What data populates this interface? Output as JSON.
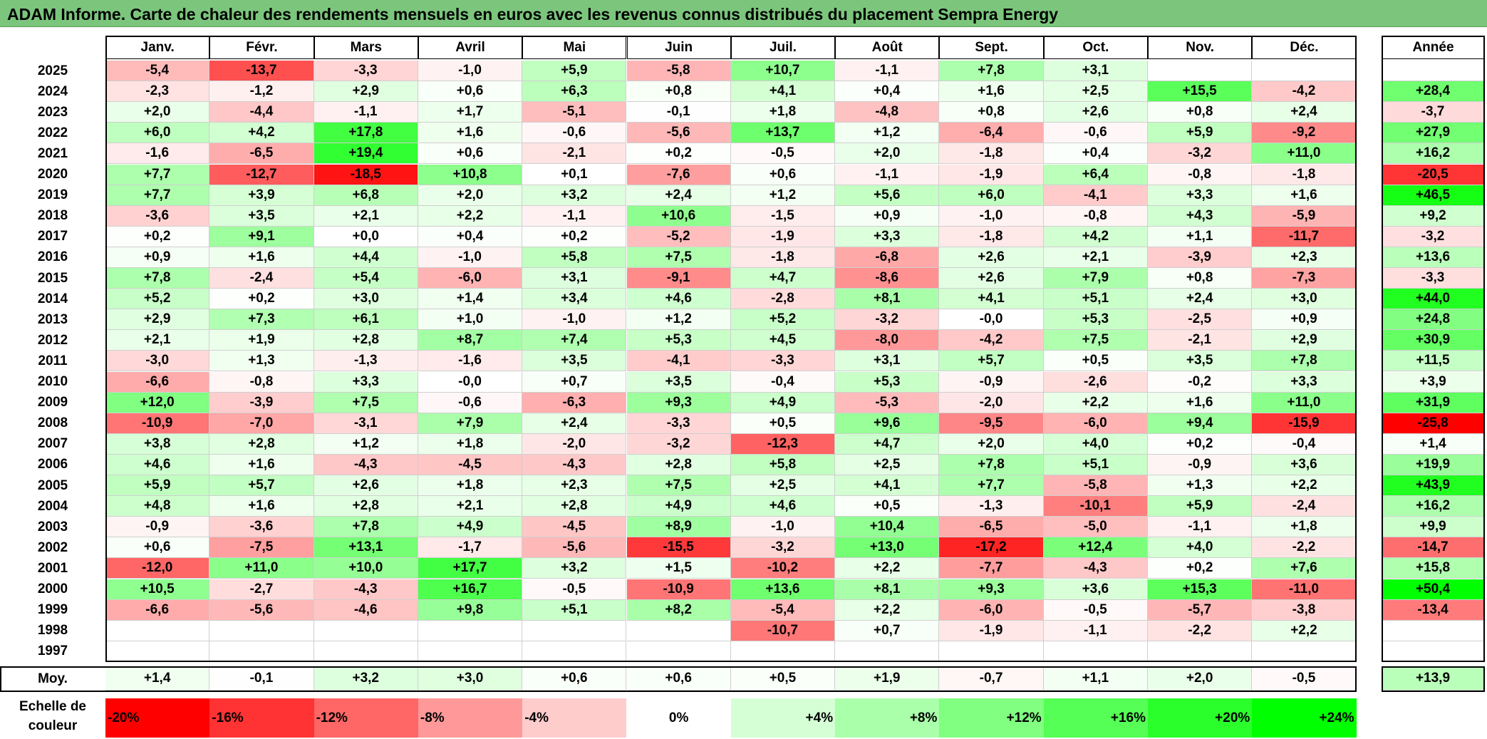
{
  "title": "ADAM Informe. Carte de chaleur des rendements mensuels en euros avec les revenus connus distribués du placement Sempra Energy",
  "colors": {
    "title_bg": "#7bc67c",
    "max_green": "#00ff00",
    "max_red": "#ff0000"
  },
  "chart_data": {
    "type": "heatmap",
    "columns": [
      "Janv.",
      "Févr.",
      "Mars",
      "Avril",
      "Mai",
      "Juin",
      "Juil.",
      "Août",
      "Sept.",
      "Oct.",
      "Nov.",
      "Déc."
    ],
    "year_header": "Année",
    "avg_label": "Moy.",
    "rows": [
      {
        "year": "2025",
        "values": [
          "-5,4",
          "-13,7",
          "-3,3",
          "-1,0",
          "+5,9",
          "-5,8",
          "+10,7",
          "-1,1",
          "+7,8",
          "+3,1",
          "",
          ""
        ],
        "annual": ""
      },
      {
        "year": "2024",
        "values": [
          "-2,3",
          "-1,2",
          "+2,9",
          "+0,6",
          "+6,3",
          "+0,8",
          "+4,1",
          "+0,4",
          "+1,6",
          "+2,5",
          "+15,5",
          "-4,2"
        ],
        "annual": "+28,4"
      },
      {
        "year": "2023",
        "values": [
          "+2,0",
          "-4,4",
          "-1,1",
          "+1,7",
          "-5,1",
          "-0,1",
          "+1,8",
          "-4,8",
          "+0,8",
          "+2,6",
          "+0,8",
          "+2,4"
        ],
        "annual": "-3,7"
      },
      {
        "year": "2022",
        "values": [
          "+6,0",
          "+4,2",
          "+17,8",
          "+1,6",
          "-0,6",
          "-5,6",
          "+13,7",
          "+1,2",
          "-6,4",
          "-0,6",
          "+5,9",
          "-9,2"
        ],
        "annual": "+27,9"
      },
      {
        "year": "2021",
        "values": [
          "-1,6",
          "-6,5",
          "+19,4",
          "+0,6",
          "-2,1",
          "+0,2",
          "-0,5",
          "+2,0",
          "-1,8",
          "+0,4",
          "-3,2",
          "+11,0"
        ],
        "annual": "+16,2"
      },
      {
        "year": "2020",
        "values": [
          "+7,7",
          "-12,7",
          "-18,5",
          "+10,8",
          "+0,1",
          "-7,6",
          "+0,6",
          "-1,1",
          "-1,9",
          "+6,4",
          "-0,8",
          "-1,8"
        ],
        "annual": "-20,5"
      },
      {
        "year": "2019",
        "values": [
          "+7,7",
          "+3,9",
          "+6,8",
          "+2,0",
          "+3,2",
          "+2,4",
          "+1,2",
          "+5,6",
          "+6,0",
          "-4,1",
          "+3,3",
          "+1,6"
        ],
        "annual": "+46,5"
      },
      {
        "year": "2018",
        "values": [
          "-3,6",
          "+3,5",
          "+2,1",
          "+2,2",
          "-1,1",
          "+10,6",
          "-1,5",
          "+0,9",
          "-1,0",
          "-0,8",
          "+4,3",
          "-5,9"
        ],
        "annual": "+9,2"
      },
      {
        "year": "2017",
        "values": [
          "+0,2",
          "+9,1",
          "+0,0",
          "+0,4",
          "+0,2",
          "-5,2",
          "-1,9",
          "+3,3",
          "-1,8",
          "+4,2",
          "+1,1",
          "-11,7"
        ],
        "annual": "-3,2"
      },
      {
        "year": "2016",
        "values": [
          "+0,9",
          "+1,6",
          "+4,4",
          "-1,0",
          "+5,8",
          "+7,5",
          "-1,8",
          "-6,8",
          "+2,6",
          "+2,1",
          "-3,9",
          "+2,3"
        ],
        "annual": "+13,6"
      },
      {
        "year": "2015",
        "values": [
          "+7,8",
          "-2,4",
          "+5,4",
          "-6,0",
          "+3,1",
          "-9,1",
          "+4,7",
          "-8,6",
          "+2,6",
          "+7,9",
          "+0,8",
          "-7,3"
        ],
        "annual": "-3,3"
      },
      {
        "year": "2014",
        "values": [
          "+5,2",
          "+0,2",
          "+3,0",
          "+1,4",
          "+3,4",
          "+4,6",
          "-2,8",
          "+8,1",
          "+4,1",
          "+5,1",
          "+2,4",
          "+3,0"
        ],
        "annual": "+44,0"
      },
      {
        "year": "2013",
        "values": [
          "+2,9",
          "+7,3",
          "+6,1",
          "+1,0",
          "-1,0",
          "+1,2",
          "+5,2",
          "-3,2",
          "-0,0",
          "+5,3",
          "-2,5",
          "+0,9"
        ],
        "annual": "+24,8"
      },
      {
        "year": "2012",
        "values": [
          "+2,1",
          "+1,9",
          "+2,8",
          "+8,7",
          "+7,4",
          "+5,3",
          "+4,5",
          "-8,0",
          "-4,2",
          "+7,5",
          "-2,1",
          "+2,9"
        ],
        "annual": "+30,9"
      },
      {
        "year": "2011",
        "values": [
          "-3,0",
          "+1,3",
          "-1,3",
          "-1,6",
          "+3,5",
          "-4,1",
          "-3,3",
          "+3,1",
          "+5,7",
          "+0,5",
          "+3,5",
          "+7,8"
        ],
        "annual": "+11,5"
      },
      {
        "year": "2010",
        "values": [
          "-6,6",
          "-0,8",
          "+3,3",
          "-0,0",
          "+0,7",
          "+3,5",
          "-0,4",
          "+5,3",
          "-0,9",
          "-2,6",
          "-0,2",
          "+3,3"
        ],
        "annual": "+3,9"
      },
      {
        "year": "2009",
        "values": [
          "+12,0",
          "-3,9",
          "+7,5",
          "-0,6",
          "-6,3",
          "+9,3",
          "+4,9",
          "-5,3",
          "-2,0",
          "+2,2",
          "+1,6",
          "+11,0"
        ],
        "annual": "+31,9"
      },
      {
        "year": "2008",
        "values": [
          "-10,9",
          "-7,0",
          "-3,1",
          "+7,9",
          "+2,4",
          "-3,3",
          "+0,5",
          "+9,6",
          "-9,5",
          "-6,0",
          "+9,4",
          "-15,9"
        ],
        "annual": "-25,8"
      },
      {
        "year": "2007",
        "values": [
          "+3,8",
          "+2,8",
          "+1,2",
          "+1,8",
          "-2,0",
          "-3,2",
          "-12,3",
          "+4,7",
          "+2,0",
          "+4,0",
          "+0,2",
          "-0,4"
        ],
        "annual": "+1,4"
      },
      {
        "year": "2006",
        "values": [
          "+4,6",
          "+1,6",
          "-4,3",
          "-4,5",
          "-4,3",
          "+2,8",
          "+5,8",
          "+2,5",
          "+7,8",
          "+5,1",
          "-0,9",
          "+3,6"
        ],
        "annual": "+19,9"
      },
      {
        "year": "2005",
        "values": [
          "+5,9",
          "+5,7",
          "+2,6",
          "+1,8",
          "+2,3",
          "+7,5",
          "+2,5",
          "+4,1",
          "+7,7",
          "-5,8",
          "+1,3",
          "+2,2"
        ],
        "annual": "+43,9"
      },
      {
        "year": "2004",
        "values": [
          "+4,8",
          "+1,6",
          "+2,8",
          "+2,1",
          "+2,8",
          "+4,9",
          "+4,6",
          "+0,5",
          "-1,3",
          "-10,1",
          "+5,9",
          "-2,4"
        ],
        "annual": "+16,2"
      },
      {
        "year": "2003",
        "values": [
          "-0,9",
          "-3,6",
          "+7,8",
          "+4,9",
          "-4,5",
          "+8,9",
          "-1,0",
          "+10,4",
          "-6,5",
          "-5,0",
          "-1,1",
          "+1,8"
        ],
        "annual": "+9,9"
      },
      {
        "year": "2002",
        "values": [
          "+0,6",
          "-7,5",
          "+13,1",
          "-1,7",
          "-5,6",
          "-15,5",
          "-3,2",
          "+13,0",
          "-17,2",
          "+12,4",
          "+4,0",
          "-2,2"
        ],
        "annual": "-14,7"
      },
      {
        "year": "2001",
        "values": [
          "-12,0",
          "+11,0",
          "+10,0",
          "+17,7",
          "+3,2",
          "+1,5",
          "-10,2",
          "+2,2",
          "-7,7",
          "-4,3",
          "+0,2",
          "+7,6"
        ],
        "annual": "+15,8"
      },
      {
        "year": "2000",
        "values": [
          "+10,5",
          "-2,7",
          "-4,3",
          "+16,7",
          "-0,5",
          "-10,9",
          "+13,6",
          "+8,1",
          "+9,3",
          "+3,6",
          "+15,3",
          "-11,0"
        ],
        "annual": "+50,4"
      },
      {
        "year": "1999",
        "values": [
          "-6,6",
          "-5,6",
          "-4,6",
          "+9,8",
          "+5,1",
          "+8,2",
          "-5,4",
          "+2,2",
          "-6,0",
          "-0,5",
          "-5,7",
          "-3,8"
        ],
        "annual": "-13,4"
      },
      {
        "year": "1998",
        "values": [
          "",
          "",
          "",
          "",
          "",
          "",
          "-10,7",
          "+0,7",
          "-1,9",
          "-1,1",
          "-2,2",
          "+2,2"
        ],
        "annual": ""
      },
      {
        "year": "1997",
        "values": [
          "",
          "",
          "",
          "",
          "",
          "",
          "",
          "",
          "",
          "",
          "",
          ""
        ],
        "annual": ""
      }
    ],
    "averages": [
      "+1,4",
      "-0,1",
      "+3,2",
      "+3,0",
      "+0,6",
      "+0,6",
      "+0,5",
      "+1,9",
      "-0,7",
      "+1,1",
      "+2,0",
      "-0,5"
    ],
    "avg_annual": "+13,9",
    "legend_title_line1": "Echelle de",
    "legend_title_line2": "couleur",
    "legend_steps": [
      "-20%",
      "-16%",
      "-12%",
      "-8%",
      "-4%",
      "0%",
      "+4%",
      "+8%",
      "+12%",
      "+16%",
      "+20%",
      "+24%"
    ],
    "legend_values": [
      -20,
      -16,
      -12,
      -8,
      -4,
      0,
      4,
      8,
      12,
      16,
      20,
      24
    ],
    "monthly_scale": [
      -20,
      24
    ],
    "annual_scale": [
      -25.8,
      50.4
    ]
  }
}
